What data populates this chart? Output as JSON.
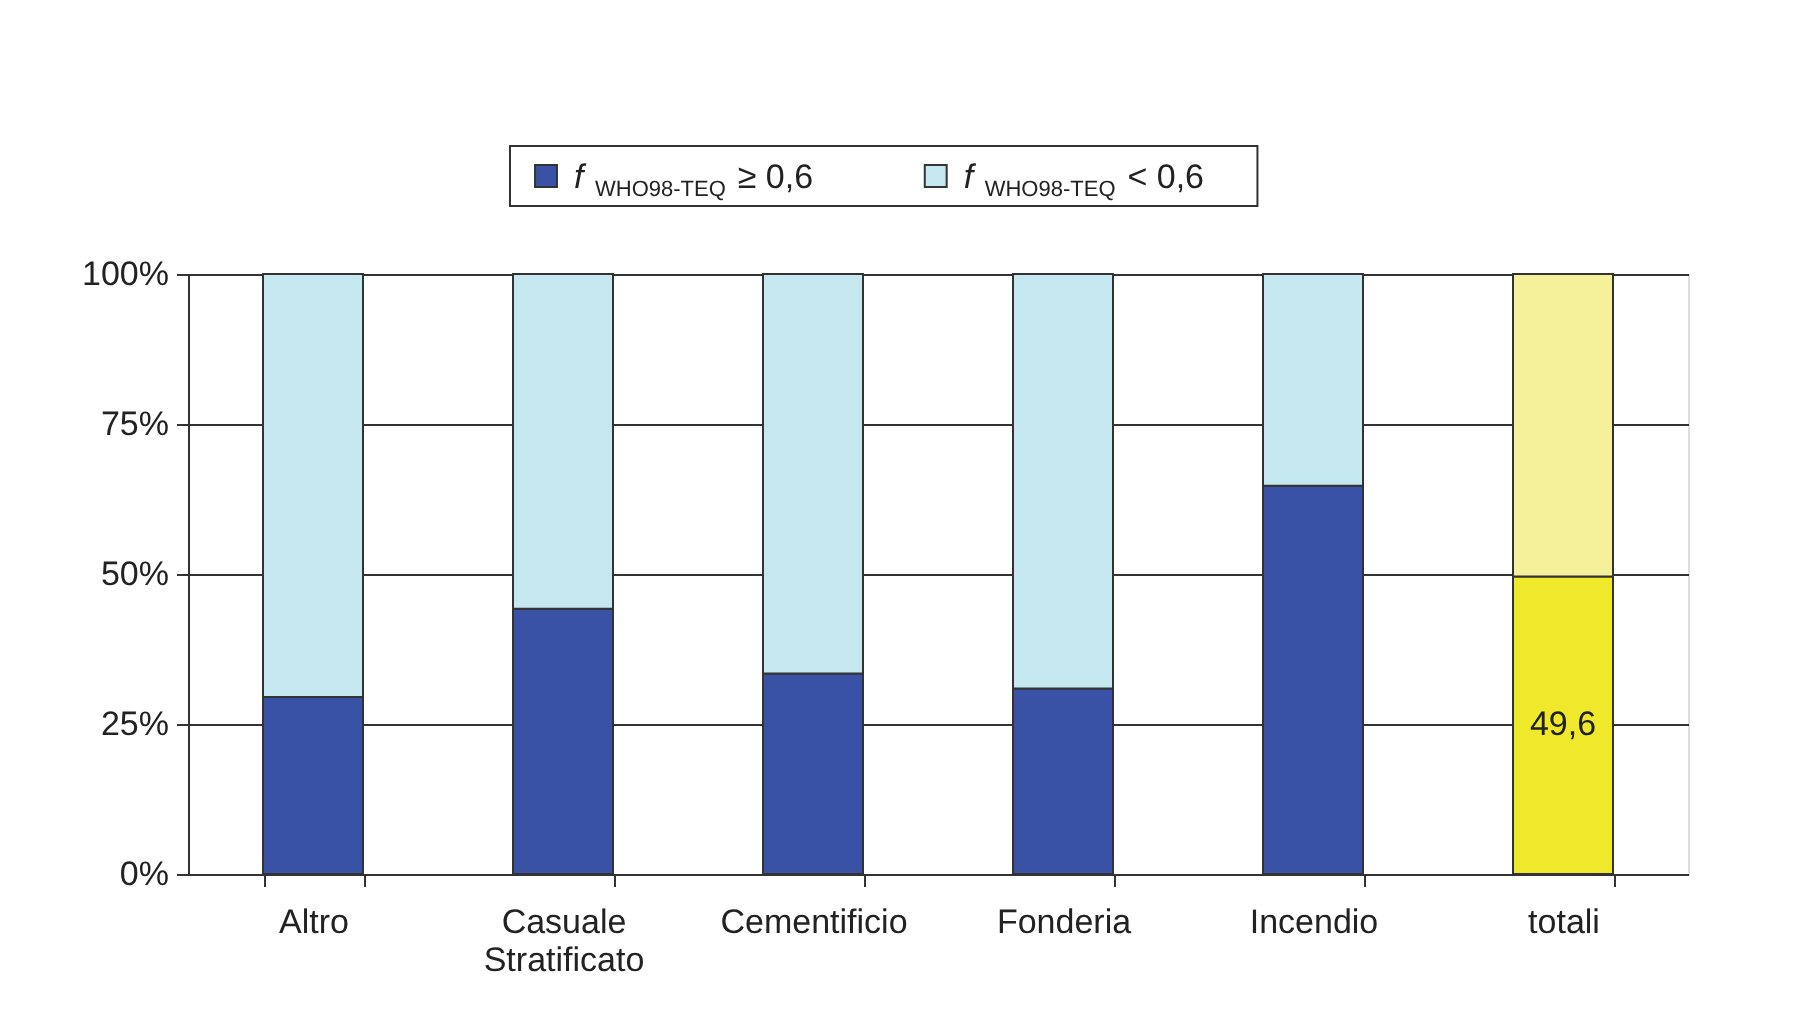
{
  "chart_data": {
    "type": "bar",
    "stacked": true,
    "categories": [
      "Altro",
      "Casuale\nStratificato",
      "Cementificio",
      "Fonderia",
      "Incendio",
      "totali"
    ],
    "series": [
      {
        "name": "f$_{WHO98-TEQ}$ ≥ 0,6",
        "color": "#3a52a5",
        "colors": [
          "#3a52a5",
          "#3a52a5",
          "#3a52a5",
          "#3a52a5",
          "#3a52a5",
          "#f0e82a"
        ],
        "values": [
          29.5,
          44.2,
          33.4,
          30.9,
          64.7,
          49.6
        ],
        "value_labels": [
          null,
          null,
          null,
          null,
          null,
          "49,6"
        ]
      },
      {
        "name": "f$_{WHO98-TEQ}$ < 0,6",
        "color": "#c5e8f0",
        "colors": [
          "#c5e8f0",
          "#c5e8f0",
          "#c5e8f0",
          "#c5e8f0",
          "#c5e8f0",
          "#f5f19b"
        ],
        "values": [
          70.5,
          55.8,
          66.6,
          69.1,
          35.3,
          50.4
        ]
      }
    ],
    "ylim": [
      0,
      100
    ],
    "yticks": [
      {
        "value": 0,
        "label": "0%"
      },
      {
        "value": 25,
        "label": "25%"
      },
      {
        "value": 50,
        "label": "50%"
      },
      {
        "value": 75,
        "label": "75%"
      },
      {
        "value": 100,
        "label": "100%"
      }
    ],
    "grid": "y",
    "legend": "top"
  }
}
